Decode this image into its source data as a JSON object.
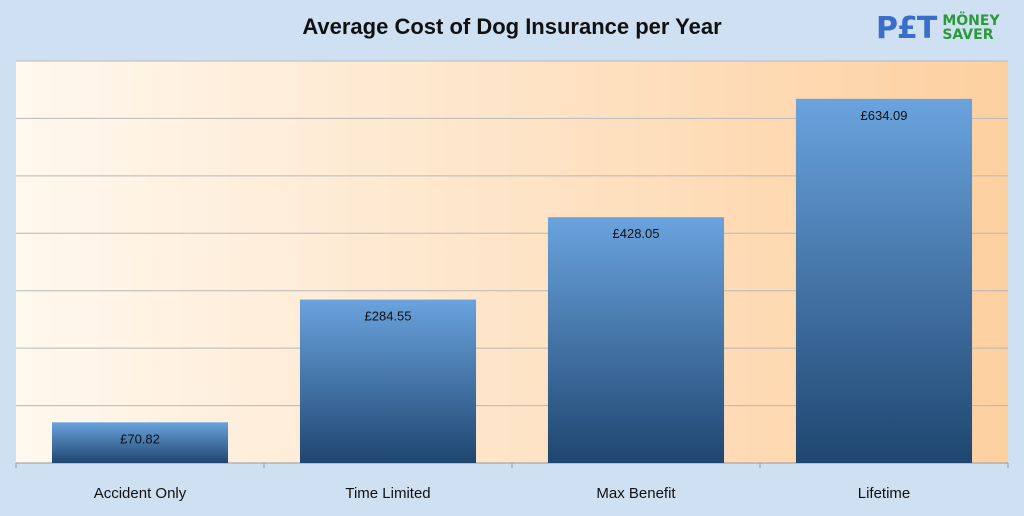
{
  "logo": {
    "pet": "P£T",
    "money": "MÖNEY",
    "saver": "SAVER"
  },
  "chart_data": {
    "type": "bar",
    "title": "Average Cost of Dog Insurance per Year",
    "categories": [
      "Accident Only",
      "Time Limited",
      "Max Benefit",
      "Lifetime"
    ],
    "values": [
      70.82,
      284.55,
      428.05,
      634.09
    ],
    "data_labels": [
      "£70.82",
      "£284.55",
      "£428.05",
      "£634.09"
    ],
    "xlabel": "",
    "ylabel": "",
    "ylim": [
      0,
      700
    ],
    "y_gridline_step": 100,
    "y_tick_labels_shown": false,
    "grid": true,
    "colors": {
      "bar_top": "#6aa3de",
      "bar_bottom": "#1f4670",
      "plot_bg_left": "#fff8ee",
      "plot_bg_right": "#fdd0a0",
      "page_bg": "#cfe0f3"
    }
  }
}
